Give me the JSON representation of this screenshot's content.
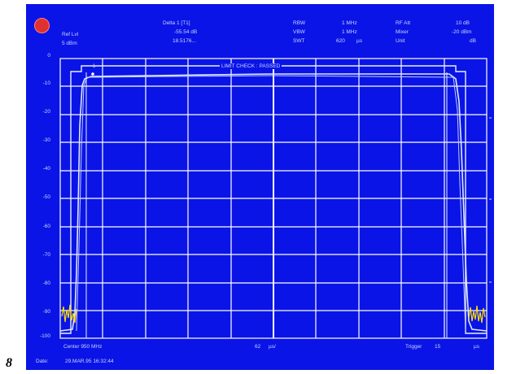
{
  "figure_number": "8",
  "header": {
    "ref_lvl_label": "Ref Lvl",
    "ref_lvl_value": "5 dBm",
    "delta_label": "Delta 1 [T1]",
    "delta_value": "-55.54 dB",
    "delta_time": "18.5176...",
    "rbw_label": "RBW",
    "rbw_value": "1 MHz",
    "vbw_label": "VBW",
    "vbw_value": "1 MHz",
    "swt_label": "SWT",
    "swt_value": "620",
    "swt_unit": "µs",
    "rf_att_label": "RF Att",
    "rf_att_value": "10 dB",
    "mixer_label": "Mixer",
    "mixer_value": "-20 dBm",
    "unit_label": "Unit",
    "unit_value": "dB"
  },
  "y_axis_labels": [
    "0",
    "-10",
    "-20",
    "-30",
    "-40",
    "-50",
    "-60",
    "-70",
    "-80",
    "-90",
    "-100"
  ],
  "limit_check_text": "LIMIT CHECK : PASSED",
  "footer": {
    "center_freq": "Center 950 MHz",
    "span": "62",
    "span_unit": "µs/",
    "trigger_label": "Trigger",
    "trigger_value": "15",
    "trigger_unit": "µs",
    "date_label": "Date:",
    "date_value": "29.MAR.95  16:32:44"
  },
  "colors": {
    "screen_bg": "#0a14e6",
    "grid": "#ffffff",
    "text": "#c8d4ff",
    "trace_noise": "#ffe000"
  }
}
